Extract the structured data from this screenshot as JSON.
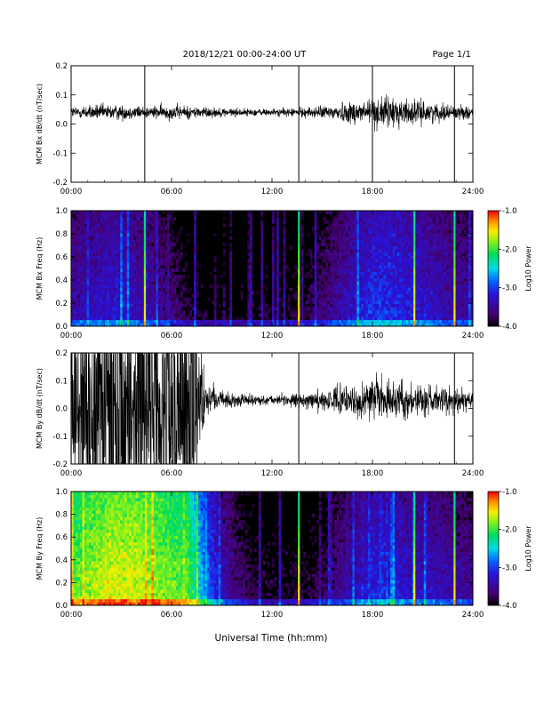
{
  "header": {
    "date_range": "2018/12/21  00:00-24:00 UT",
    "page": "Page 1/1"
  },
  "footer": {
    "xlabel": "Universal Time (hh:mm)"
  },
  "chart_data": [
    {
      "type": "line",
      "ylabel": "MCM Bx dB/dt (nT/sec)",
      "xlim": [
        0,
        24
      ],
      "ylim": [
        -0.2,
        0.2
      ],
      "x_ticks": [
        "00:00",
        "06:00",
        "12:00",
        "18:00",
        "24:00"
      ],
      "y_ticks": [
        "0.2",
        "0.1",
        "0.0",
        "-0.1",
        "-0.2"
      ],
      "series": [
        {
          "hours": [
            0,
            1.5,
            3,
            4.5,
            6,
            7.5,
            9,
            10.5,
            12,
            13.5,
            15,
            16.5,
            18,
            19.5,
            21,
            22.5,
            24
          ],
          "amplitude": [
            0.02,
            0.025,
            0.025,
            0.02,
            0.025,
            0.02,
            0.015,
            0.012,
            0.012,
            0.015,
            0.02,
            0.035,
            0.05,
            0.05,
            0.035,
            0.025,
            0.02
          ],
          "baseline": 0.04
        }
      ],
      "spikes_hours": [
        4.4,
        13.6,
        18.0,
        22.9
      ],
      "grid": false
    },
    {
      "type": "heatmap",
      "ylabel": "MCM Bx Freq (Hz)",
      "xlim": [
        0,
        24
      ],
      "ylim": [
        0,
        1.0
      ],
      "x_ticks": [
        "00:00",
        "06:00",
        "12:00",
        "18:00",
        "24:00"
      ],
      "y_ticks": [
        "1.0",
        "0.8",
        "0.6",
        "0.4",
        "0.2",
        "0.0"
      ],
      "colorbar": {
        "label": "Log10 Power",
        "ticks": [
          "-1.0",
          "-2.0",
          "-3.0",
          "-4.0"
        ],
        "range": [
          -4.0,
          -1.0
        ]
      },
      "power_by_hour": [
        -3.4,
        -3.3,
        -3.2,
        -3.2,
        -3.3,
        -3.4,
        -3.6,
        -3.8,
        -3.9,
        -3.95,
        -3.95,
        -3.9,
        -3.9,
        -3.85,
        -3.8,
        -3.6,
        -3.4,
        -3.2,
        -3.0,
        -3.0,
        -3.1,
        -3.2,
        -3.3,
        -3.4,
        -3.5
      ],
      "spikes_hours": [
        4.4,
        13.6,
        20.5,
        22.9
      ]
    },
    {
      "type": "line",
      "ylabel": "MCM By dB/dt (nT/sec)",
      "xlim": [
        0,
        24
      ],
      "ylim": [
        -0.2,
        0.2
      ],
      "x_ticks": [
        "00:00",
        "06:00",
        "12:00",
        "18:00",
        "24:00"
      ],
      "y_ticks": [
        "0.2",
        "0.1",
        "0.0",
        "-0.1",
        "-0.2"
      ],
      "series": [
        {
          "hours": [
            0,
            1.5,
            3,
            4.5,
            6,
            7.5,
            8,
            9,
            10.5,
            12,
            13.5,
            15,
            16.5,
            18,
            19.5,
            21,
            22.5,
            24
          ],
          "amplitude": [
            0.5,
            0.5,
            0.5,
            0.5,
            0.5,
            0.5,
            0.06,
            0.03,
            0.02,
            0.015,
            0.025,
            0.035,
            0.05,
            0.07,
            0.06,
            0.05,
            0.045,
            0.04
          ],
          "baseline": 0.03
        }
      ],
      "spikes_hours": [
        13.6,
        22.9
      ],
      "grid": false
    },
    {
      "type": "heatmap",
      "ylabel": "MCM By Freq (Hz)",
      "xlim": [
        0,
        24
      ],
      "ylim": [
        0,
        1.0
      ],
      "x_ticks": [
        "00:00",
        "06:00",
        "12:00",
        "18:00",
        "24:00"
      ],
      "y_ticks": [
        "1.0",
        "0.8",
        "0.6",
        "0.4",
        "0.2",
        "0.0"
      ],
      "colorbar": {
        "label": "Log10 Power",
        "ticks": [
          "-1.0",
          "-2.0",
          "-3.0",
          "-4.0"
        ],
        "range": [
          -4.0,
          -1.0
        ]
      },
      "power_by_hour": [
        -1.9,
        -1.7,
        -1.6,
        -1.55,
        -1.6,
        -1.7,
        -1.8,
        -1.9,
        -2.7,
        -3.3,
        -3.6,
        -3.8,
        -3.85,
        -3.85,
        -3.8,
        -3.7,
        -3.5,
        -3.3,
        -3.1,
        -3.1,
        -3.2,
        -3.3,
        -3.3,
        -3.4,
        -3.5
      ],
      "spikes_hours": [
        13.6,
        20.5,
        22.9
      ]
    }
  ]
}
